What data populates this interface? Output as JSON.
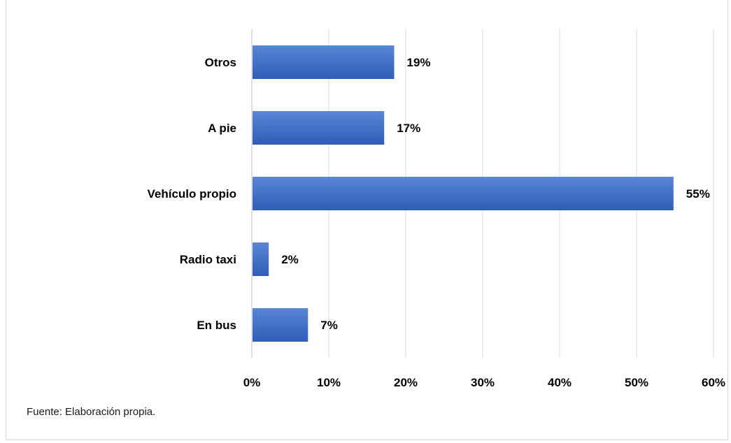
{
  "chart_data": {
    "type": "bar",
    "orientation": "horizontal",
    "title": "",
    "categories": [
      "Otros",
      "A pie",
      "Vehículo propio",
      "Radio taxi",
      "En bus"
    ],
    "values": [
      18.5,
      17.2,
      54.8,
      2.2,
      7.3
    ],
    "data_labels": [
      "19%",
      "17%",
      "55%",
      "2%",
      "7%"
    ],
    "xlim": [
      0,
      60
    ],
    "x_ticks": [
      0,
      10,
      20,
      30,
      40,
      50,
      60
    ],
    "x_tick_labels": [
      "0%",
      "10%",
      "20%",
      "30%",
      "40%",
      "50%",
      "60%"
    ],
    "xlabel": "",
    "ylabel": "",
    "grid": "vertical",
    "legend": "none",
    "bar_color": "#4472c4",
    "bar_gradient_top": "#5b86d6",
    "bar_gradient_bottom": "#2f5db8",
    "grid_color": "#d9d9d9"
  },
  "source_note": "Fuente: Elaboración propia."
}
